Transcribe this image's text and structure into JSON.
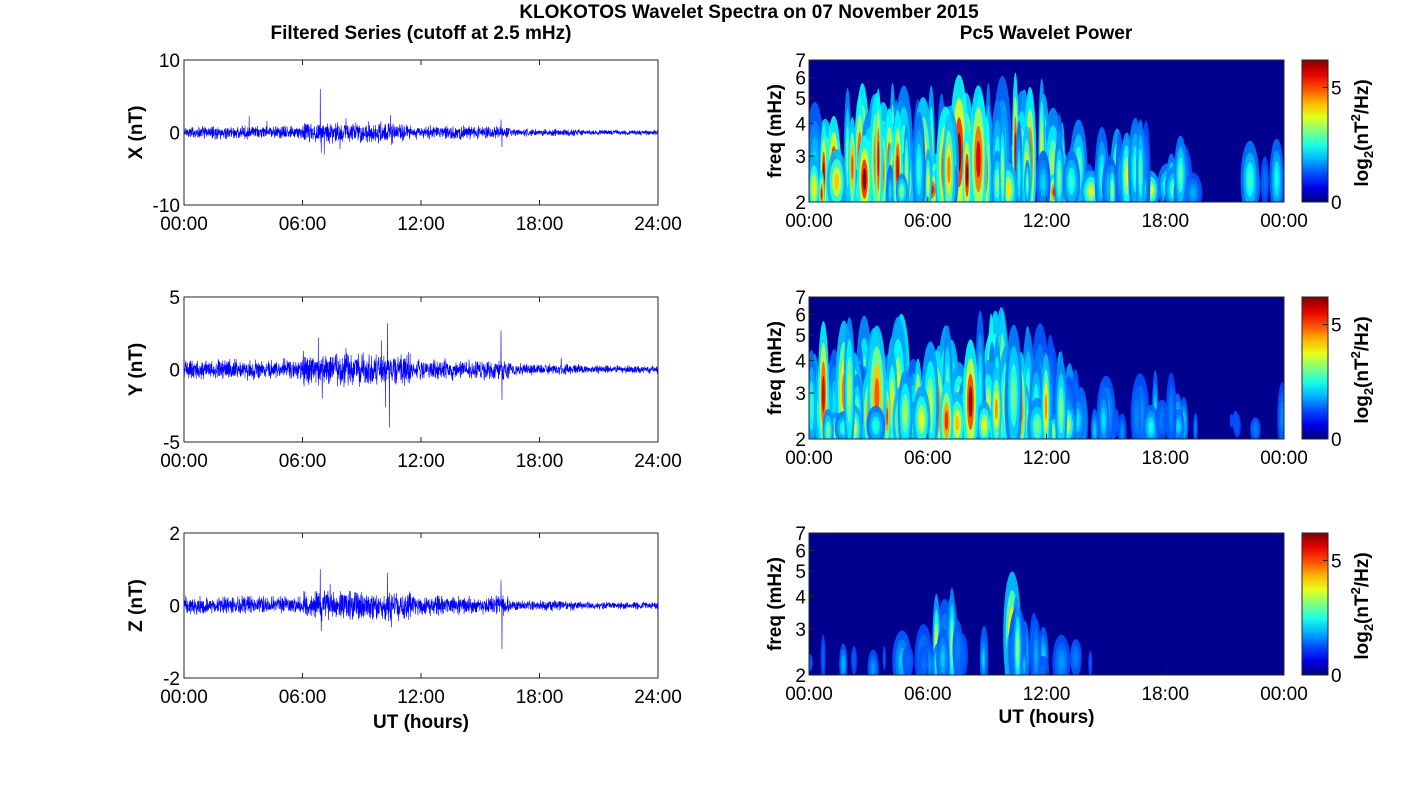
{
  "figure": {
    "title": "KLOKOTOS Wavelet Spectra on 07 November 2015",
    "left_title": "Filtered Series (cutoff at 2.5 mHz)",
    "right_title": "Pc5 Wavelet Power"
  },
  "chart_data": [
    {
      "type": "line",
      "component": "X",
      "ylabel": "X (nT)",
      "ylim": [
        -10,
        10
      ],
      "yticks": [
        "-10",
        "0",
        "10"
      ],
      "xlim_hours": [
        0,
        24
      ],
      "xticks": [
        "00:00",
        "06:00",
        "12:00",
        "18:00",
        "24:00"
      ],
      "xlabel": "",
      "series_color": "#0000ff",
      "base_amplitude": 0.7,
      "spikes": [
        {
          "t": 3.3,
          "y": 2.3
        },
        {
          "t": 4.2,
          "y": 1.6
        },
        {
          "t": 6.9,
          "y": 6.0
        },
        {
          "t": 6.95,
          "y": -2.8
        },
        {
          "t": 7.1,
          "y": -3.0
        },
        {
          "t": 7.9,
          "y": -2.3
        },
        {
          "t": 8.2,
          "y": 2.0
        },
        {
          "t": 10.45,
          "y": 2.4
        },
        {
          "t": 10.5,
          "y": -1.7
        },
        {
          "t": 16.05,
          "y": 1.8
        },
        {
          "t": 16.1,
          "y": -2.0
        }
      ]
    },
    {
      "type": "line",
      "component": "Y",
      "ylabel": "Y (nT)",
      "ylim": [
        -5,
        5
      ],
      "yticks": [
        "-5",
        "0",
        "5"
      ],
      "xlim_hours": [
        0,
        24
      ],
      "xticks": [
        "00:00",
        "06:00",
        "12:00",
        "18:00",
        "24:00"
      ],
      "xlabel": "",
      "series_color": "#0000ff",
      "base_amplitude": 0.55,
      "spikes": [
        {
          "t": 6.8,
          "y": 2.2
        },
        {
          "t": 7.0,
          "y": -2.0
        },
        {
          "t": 8.2,
          "y": 1.5
        },
        {
          "t": 10.0,
          "y": 2.0
        },
        {
          "t": 10.3,
          "y": 3.2
        },
        {
          "t": 10.4,
          "y": -4.0
        },
        {
          "t": 10.2,
          "y": -2.6
        },
        {
          "t": 16.05,
          "y": 2.7
        },
        {
          "t": 16.1,
          "y": -2.1
        },
        {
          "t": 19.1,
          "y": 0.8
        }
      ]
    },
    {
      "type": "line",
      "component": "Z",
      "ylabel": "Z (nT)",
      "ylim": [
        -2,
        2
      ],
      "yticks": [
        "-2",
        "0",
        "2"
      ],
      "xlim_hours": [
        0,
        24
      ],
      "xticks": [
        "00:00",
        "06:00",
        "12:00",
        "18:00",
        "24:00"
      ],
      "xlabel": "UT (hours)",
      "series_color": "#0000ff",
      "base_amplitude": 0.2,
      "spikes": [
        {
          "t": 6.9,
          "y": 1.0
        },
        {
          "t": 6.95,
          "y": -0.7
        },
        {
          "t": 7.4,
          "y": 0.6
        },
        {
          "t": 10.3,
          "y": 0.9
        },
        {
          "t": 10.5,
          "y": -0.6
        },
        {
          "t": 16.05,
          "y": 0.7
        },
        {
          "t": 16.1,
          "y": -1.2
        }
      ]
    },
    {
      "type": "heatmap",
      "component": "X",
      "ylabel": "freq (mHz)",
      "ylim_mhz": [
        2,
        7
      ],
      "yscale": "log",
      "yticks": [
        "2",
        "3",
        "4",
        "5",
        "6",
        "7"
      ],
      "xlim_hours": [
        0,
        24
      ],
      "xticks": [
        "00:00",
        "06:00",
        "12:00",
        "18:00",
        "00:00"
      ],
      "xlabel": "",
      "colorbar": {
        "label_base": "log",
        "label_sub": "2",
        "label_open": "(nT",
        "label_sup": "2",
        "label_rest": "/Hz)",
        "range": [
          0,
          6.2
        ],
        "ticks": [
          "0",
          "5"
        ],
        "colormap": "jet"
      },
      "activity_profile": [
        [
          0,
          0.95
        ],
        [
          4,
          0.9
        ],
        [
          6,
          0.85
        ],
        [
          8,
          1.0
        ],
        [
          10,
          1.0
        ],
        [
          12,
          0.85
        ],
        [
          14,
          0.6
        ],
        [
          16,
          0.55
        ],
        [
          18,
          0.6
        ],
        [
          19.5,
          0.5
        ],
        [
          20.5,
          0.05
        ],
        [
          21.5,
          0.05
        ],
        [
          22,
          0.4
        ],
        [
          24,
          0.35
        ]
      ]
    },
    {
      "type": "heatmap",
      "component": "Y",
      "ylabel": "freq (mHz)",
      "ylim_mhz": [
        2,
        7
      ],
      "yscale": "log",
      "yticks": [
        "2",
        "3",
        "4",
        "5",
        "6",
        "7"
      ],
      "xlim_hours": [
        0,
        24
      ],
      "xticks": [
        "00:00",
        "06:00",
        "12:00",
        "18:00",
        "00:00"
      ],
      "xlabel": "",
      "colorbar": {
        "label_base": "log",
        "label_sub": "2",
        "label_open": "(nT",
        "label_sup": "2",
        "label_rest": "/Hz)",
        "range": [
          0,
          6.2
        ],
        "ticks": [
          "0",
          "5"
        ],
        "colormap": "jet"
      },
      "activity_profile": [
        [
          0,
          0.85
        ],
        [
          3,
          0.9
        ],
        [
          6,
          0.9
        ],
        [
          8,
          1.0
        ],
        [
          10.5,
          1.0
        ],
        [
          12,
          0.8
        ],
        [
          14,
          0.45
        ],
        [
          16,
          0.35
        ],
        [
          18,
          0.45
        ],
        [
          20,
          0.2
        ],
        [
          22,
          0.2
        ],
        [
          24,
          0.3
        ]
      ]
    },
    {
      "type": "heatmap",
      "component": "Z",
      "ylabel": "freq (mHz)",
      "ylim_mhz": [
        2,
        7
      ],
      "yscale": "log",
      "yticks": [
        "2",
        "3",
        "4",
        "5",
        "6",
        "7"
      ],
      "xlim_hours": [
        0,
        24
      ],
      "xticks": [
        "00:00",
        "06:00",
        "12:00",
        "18:00",
        "00:00"
      ],
      "xlabel": "UT (hours)",
      "colorbar": {
        "label_base": "log",
        "label_sub": "2",
        "label_open": "(nT",
        "label_sup": "2",
        "label_rest": "/Hz)",
        "range": [
          0,
          6.2
        ],
        "ticks": [
          "0",
          "5"
        ],
        "colormap": "jet"
      },
      "activity_profile": [
        [
          0,
          0.25
        ],
        [
          2,
          0.3
        ],
        [
          4,
          0.3
        ],
        [
          6,
          0.3
        ],
        [
          6.6,
          0.75
        ],
        [
          7.5,
          0.6
        ],
        [
          8,
          0.3
        ],
        [
          10,
          0.4
        ],
        [
          10.3,
          0.75
        ],
        [
          11,
          0.35
        ],
        [
          14,
          0.2
        ],
        [
          18,
          0.15
        ],
        [
          20,
          0.05
        ],
        [
          24,
          0.1
        ]
      ]
    }
  ]
}
